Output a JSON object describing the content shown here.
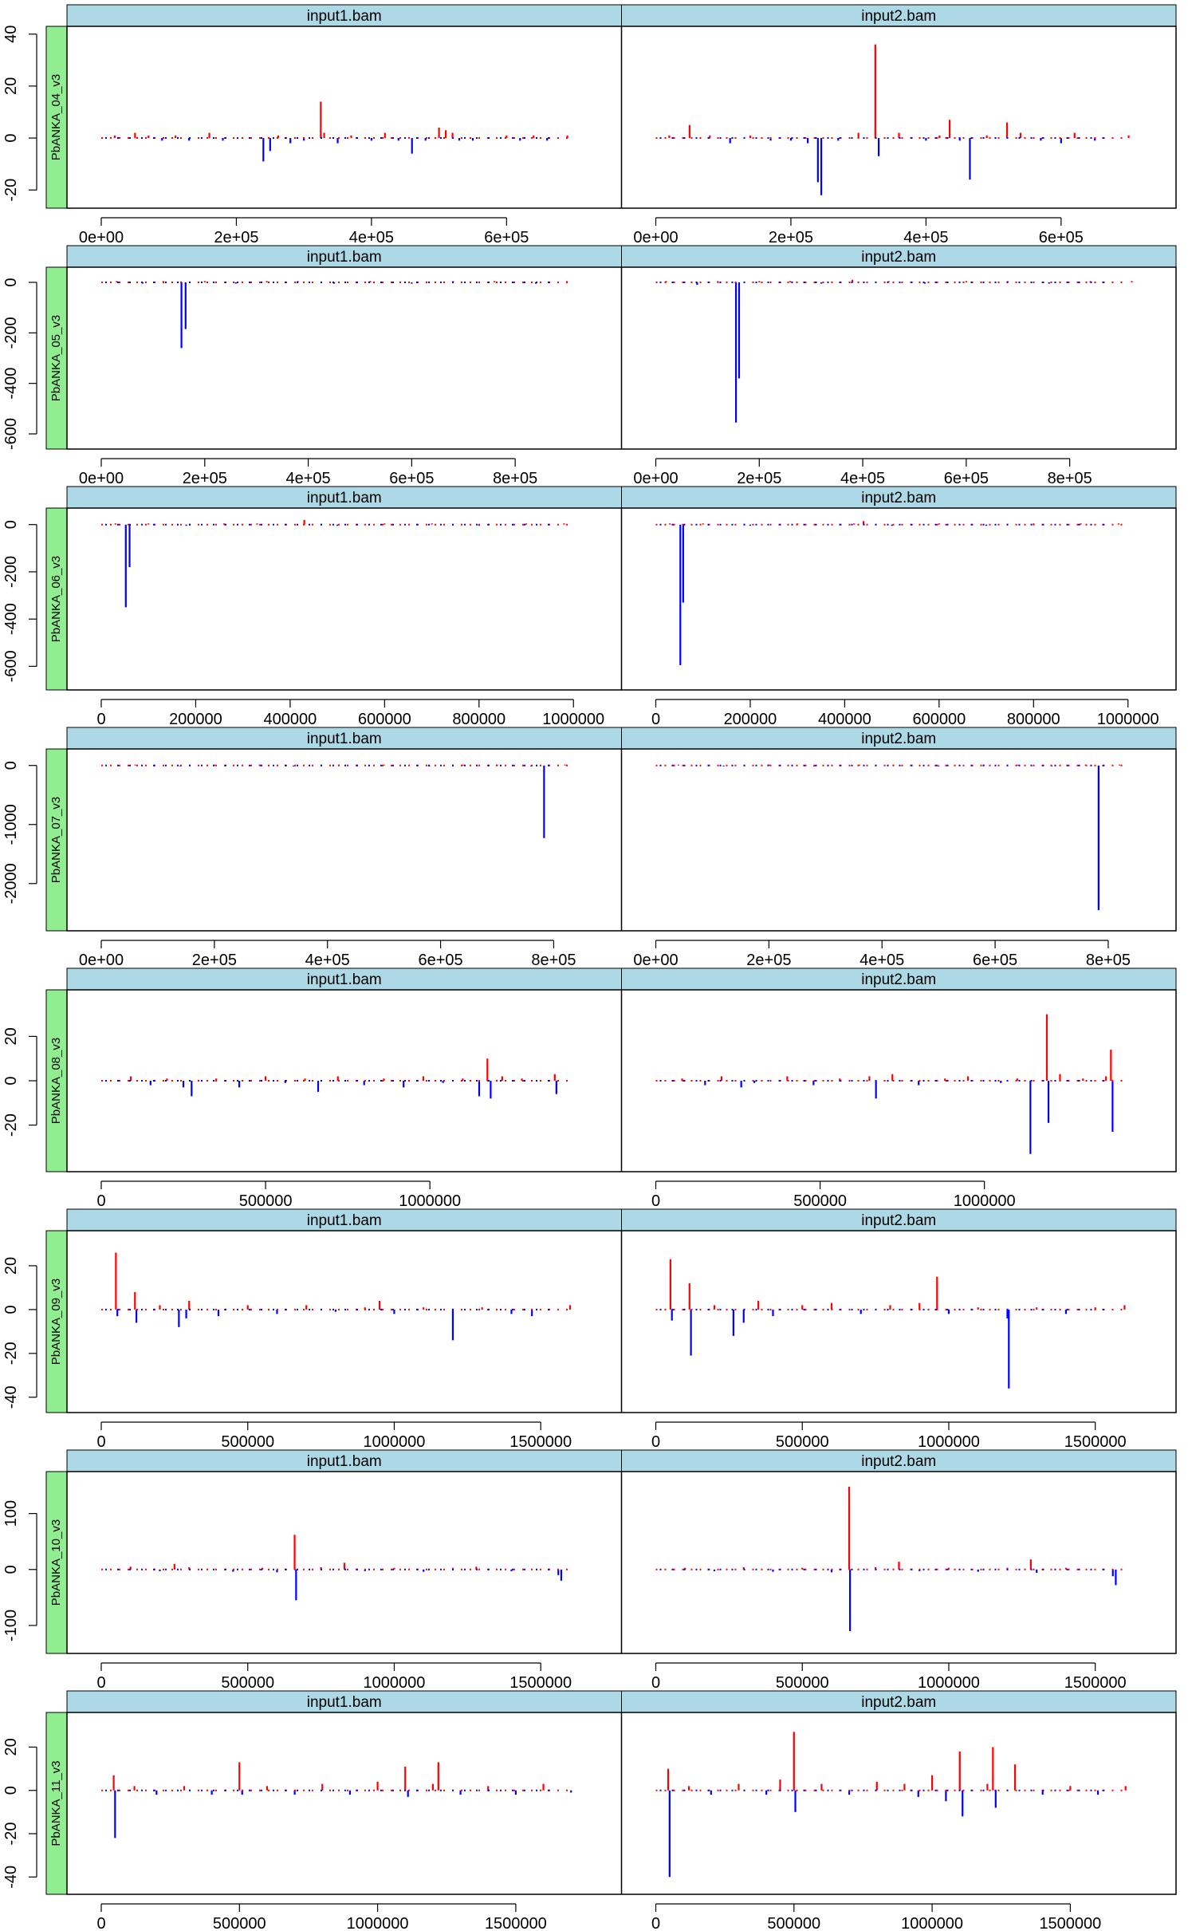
{
  "colors": {
    "positive": "#ff0000",
    "negative": "#0000ff",
    "strip_top": "#add8e6",
    "strip_side": "#90ee90",
    "frame": "#000000"
  },
  "panels": [
    "input1.bam",
    "input2.bam"
  ],
  "chart_data": [
    {
      "type": "bar",
      "row_label": "PbANKA_04_v3",
      "panel_labels": [
        "input1.bam",
        "input2.bam"
      ],
      "xlim": [
        0,
        720000
      ],
      "ylim": [
        -27,
        43
      ],
      "xticks": [
        0,
        200000,
        400000,
        600000
      ],
      "xtick_labels": [
        "0e+00",
        "2e+05",
        "4e+05",
        "6e+05"
      ],
      "yticks": [
        -20,
        0,
        20,
        40
      ],
      "ytick_labels": [
        "-20",
        "0",
        "20",
        "40"
      ],
      "series": [
        {
          "panel": "input1.bam",
          "x": [
            20000,
            50000,
            70000,
            90000,
            110000,
            130000,
            160000,
            180000,
            240000,
            250000,
            262000,
            280000,
            300000,
            325000,
            330000,
            350000,
            370000,
            400000,
            420000,
            440000,
            460000,
            480000,
            500000,
            510000,
            520000,
            530000,
            550000,
            600000,
            620000,
            640000,
            660000,
            690000
          ],
          "y": [
            1,
            2,
            1,
            -1,
            1,
            -1,
            2,
            -1,
            -9,
            -5,
            1,
            -2,
            -1,
            14,
            2,
            -2,
            1,
            -1,
            2,
            -1,
            -6,
            -1,
            4,
            3,
            2,
            -1,
            -1,
            1,
            -1,
            1,
            -1,
            1
          ]
        },
        {
          "panel": "input2.bam",
          "x": [
            20000,
            50000,
            80000,
            110000,
            140000,
            170000,
            200000,
            225000,
            240000,
            245000,
            270000,
            300000,
            325000,
            330000,
            360000,
            400000,
            420000,
            435000,
            450000,
            465000,
            490000,
            520000,
            540000,
            570000,
            600000,
            620000,
            650000,
            700000
          ],
          "y": [
            1,
            5,
            1,
            -2,
            1,
            -1,
            -1,
            -2,
            -17,
            -22,
            -1,
            2,
            36,
            -7,
            2,
            -1,
            1,
            7,
            -1,
            -16,
            1,
            6,
            2,
            -1,
            -2,
            2,
            -1,
            1
          ]
        }
      ]
    },
    {
      "type": "bar",
      "row_label": "PbANKA_05_v3",
      "panel_labels": [
        "input1.bam",
        "input2.bam"
      ],
      "xlim": [
        0,
        940000
      ],
      "ylim": [
        -660,
        60
      ],
      "xticks": [
        0,
        200000,
        400000,
        600000,
        800000
      ],
      "xtick_labels": [
        "0e+00",
        "2e+05",
        "4e+05",
        "6e+05",
        "8e+05"
      ],
      "yticks": [
        -600,
        -400,
        -200,
        0
      ],
      "ytick_labels": [
        "-600",
        "-400",
        "-200",
        "0"
      ],
      "series": [
        {
          "panel": "input1.bam",
          "x": [
            30000,
            80000,
            120000,
            155000,
            163000,
            200000,
            260000,
            320000,
            380000,
            450000,
            520000,
            600000,
            680000,
            760000,
            840000,
            900000
          ],
          "y": [
            5,
            -5,
            5,
            -260,
            -185,
            5,
            -5,
            5,
            5,
            -5,
            5,
            -5,
            5,
            5,
            -5,
            5
          ]
        },
        {
          "panel": "input2.bam",
          "x": [
            20000,
            80000,
            120000,
            155000,
            161000,
            200000,
            260000,
            320000,
            380000,
            450000,
            520000,
            600000,
            680000,
            760000,
            840000,
            920000
          ],
          "y": [
            5,
            -10,
            5,
            -555,
            -380,
            5,
            5,
            -5,
            10,
            5,
            -5,
            5,
            5,
            -5,
            5,
            5
          ]
        }
      ]
    },
    {
      "type": "bar",
      "row_label": "PbANKA_06_v3",
      "panel_labels": [
        "input1.bam",
        "input2.bam"
      ],
      "xlim": [
        0,
        1030000
      ],
      "ylim": [
        -700,
        70
      ],
      "xticks": [
        0,
        200000,
        400000,
        600000,
        800000,
        1000000
      ],
      "xtick_labels": [
        "0",
        "200000",
        "400000",
        "600000",
        "800000",
        "1000000"
      ],
      "yticks": [
        -600,
        -400,
        -200,
        0
      ],
      "ytick_labels": [
        "-600",
        "-400",
        "-200",
        "0"
      ],
      "series": [
        {
          "panel": "input1.bam",
          "x": [
            30000,
            52000,
            60000,
            100000,
            180000,
            260000,
            330000,
            430000,
            500000,
            600000,
            700000,
            800000,
            900000,
            980000
          ],
          "y": [
            5,
            -350,
            -180,
            5,
            -5,
            5,
            5,
            20,
            -5,
            5,
            5,
            -5,
            5,
            5
          ]
        },
        {
          "panel": "input2.bam",
          "x": [
            30000,
            52000,
            58000,
            100000,
            200000,
            300000,
            420000,
            440000,
            500000,
            600000,
            700000,
            800000,
            900000,
            980000
          ],
          "y": [
            5,
            -595,
            -330,
            5,
            -5,
            5,
            5,
            15,
            -5,
            5,
            -5,
            5,
            5,
            5
          ]
        }
      ]
    },
    {
      "type": "bar",
      "row_label": "PbANKA_07_v3",
      "panel_labels": [
        "input1.bam",
        "input2.bam"
      ],
      "xlim": [
        0,
        860000
      ],
      "ylim": [
        -2800,
        280
      ],
      "xticks": [
        0,
        200000,
        400000,
        600000,
        800000
      ],
      "xtick_labels": [
        "0e+00",
        "2e+05",
        "4e+05",
        "6e+05",
        "8e+05"
      ],
      "yticks": [
        -2000,
        -1000,
        0
      ],
      "ytick_labels": [
        "-2000",
        "-1000",
        "0"
      ],
      "series": [
        {
          "panel": "input1.bam",
          "x": [
            60000,
            140000,
            200000,
            280000,
            340000,
            420000,
            500000,
            580000,
            640000,
            700000,
            760000,
            783000,
            820000
          ],
          "y": [
            15,
            -15,
            15,
            15,
            -15,
            15,
            15,
            -15,
            15,
            15,
            -15,
            -1230,
            15
          ]
        },
        {
          "panel": "input2.bam",
          "x": [
            40000,
            120000,
            200000,
            280000,
            360000,
            420000,
            500000,
            580000,
            640000,
            700000,
            760000,
            783000,
            820000
          ],
          "y": [
            15,
            -15,
            15,
            -15,
            15,
            15,
            -15,
            15,
            15,
            -15,
            15,
            -2450,
            15
          ]
        }
      ]
    },
    {
      "type": "bar",
      "row_label": "PbANKA_08_v3",
      "panel_labels": [
        "input1.bam",
        "input2.bam"
      ],
      "xlim": [
        0,
        1480000
      ],
      "ylim": [
        -41,
        41
      ],
      "xticks": [
        0,
        500000,
        1000000
      ],
      "xtick_labels": [
        "0",
        "500000",
        "1000000"
      ],
      "yticks": [
        -20,
        0,
        20
      ],
      "ytick_labels": [
        "-20",
        "0",
        "20"
      ],
      "series": [
        {
          "panel": "input1.bam",
          "x": [
            90000,
            150000,
            200000,
            250000,
            275000,
            350000,
            420000,
            500000,
            560000,
            620000,
            660000,
            720000,
            800000,
            860000,
            920000,
            980000,
            1040000,
            1100000,
            1150000,
            1175000,
            1185000,
            1220000,
            1280000,
            1380000,
            1385000
          ],
          "y": [
            2,
            -2,
            1,
            -3,
            -7,
            1,
            -3,
            2,
            -1,
            1,
            -5,
            2,
            -2,
            1,
            -3,
            2,
            -1,
            1,
            -7,
            10,
            -8,
            2,
            1,
            3,
            -6
          ]
        },
        {
          "panel": "input2.bam",
          "x": [
            80000,
            150000,
            200000,
            260000,
            300000,
            400000,
            480000,
            560000,
            650000,
            670000,
            720000,
            800000,
            880000,
            950000,
            1050000,
            1100000,
            1140000,
            1190000,
            1195000,
            1230000,
            1300000,
            1370000,
            1385000,
            1390000
          ],
          "y": [
            1,
            -2,
            2,
            -3,
            -1,
            2,
            -2,
            1,
            2,
            -8,
            3,
            -2,
            1,
            2,
            -1,
            1,
            -33,
            30,
            -19,
            3,
            1,
            2,
            14,
            -23
          ]
        }
      ]
    },
    {
      "type": "bar",
      "row_label": "PbANKA_09_v3",
      "panel_labels": [
        "input1.bam",
        "input2.bam"
      ],
      "xlim": [
        0,
        1660000
      ],
      "ylim": [
        -47,
        36
      ],
      "xticks": [
        0,
        500000,
        1000000,
        1500000
      ],
      "xtick_labels": [
        "0",
        "500000",
        "1000000",
        "1500000"
      ],
      "yticks": [
        -40,
        -20,
        0,
        20
      ],
      "ytick_labels": [
        "-40",
        "-20",
        "0",
        "20"
      ],
      "series": [
        {
          "panel": "input1.bam",
          "x": [
            50000,
            55000,
            115000,
            120000,
            200000,
            265000,
            290000,
            300000,
            400000,
            500000,
            600000,
            700000,
            800000,
            900000,
            950000,
            1000000,
            1100000,
            1200000,
            1300000,
            1400000,
            1470000,
            1600000
          ],
          "y": [
            26,
            -3,
            8,
            -6,
            2,
            -8,
            -4,
            4,
            -3,
            2,
            -2,
            2,
            -1,
            1,
            4,
            -2,
            1,
            -14,
            1,
            -2,
            -3,
            2
          ]
        },
        {
          "panel": "input2.bam",
          "x": [
            50000,
            55000,
            115000,
            120000,
            200000,
            265000,
            300000,
            350000,
            400000,
            500000,
            600000,
            700000,
            800000,
            900000,
            960000,
            1000000,
            1100000,
            1200000,
            1205000,
            1300000,
            1400000,
            1500000,
            1600000
          ],
          "y": [
            23,
            -5,
            12,
            -21,
            2,
            -12,
            -6,
            4,
            -3,
            2,
            3,
            -2,
            2,
            3,
            15,
            -2,
            1,
            -4,
            -36,
            1,
            -2,
            1,
            2
          ]
        }
      ]
    },
    {
      "type": "bar",
      "row_label": "PbANKA_10_v3",
      "panel_labels": [
        "input1.bam",
        "input2.bam"
      ],
      "xlim": [
        0,
        1660000
      ],
      "ylim": [
        -150,
        175
      ],
      "xticks": [
        0,
        500000,
        1000000,
        1500000
      ],
      "xtick_labels": [
        "0",
        "500000",
        "1000000",
        "1500000"
      ],
      "yticks": [
        -100,
        0,
        100
      ],
      "ytick_labels": [
        "-100",
        "0",
        "100"
      ],
      "series": [
        {
          "panel": "input1.bam",
          "x": [
            100000,
            200000,
            250000,
            300000,
            450000,
            550000,
            600000,
            660000,
            665000,
            750000,
            830000,
            900000,
            1000000,
            1100000,
            1200000,
            1280000,
            1400000,
            1560000,
            1570000
          ],
          "y": [
            5,
            -3,
            10,
            4,
            -4,
            3,
            -5,
            62,
            -55,
            4,
            12,
            -3,
            3,
            -4,
            3,
            5,
            -3,
            -10,
            -20
          ]
        },
        {
          "panel": "input2.bam",
          "x": [
            100000,
            200000,
            300000,
            400000,
            500000,
            600000,
            660000,
            663000,
            750000,
            830000,
            900000,
            1000000,
            1100000,
            1200000,
            1280000,
            1300000,
            1400000,
            1560000,
            1570000
          ],
          "y": [
            3,
            -3,
            4,
            -4,
            3,
            -5,
            148,
            -110,
            4,
            14,
            -3,
            3,
            -4,
            3,
            18,
            -6,
            3,
            -12,
            -28
          ]
        }
      ]
    },
    {
      "type": "bar",
      "row_label": "PbANKA_11_v3",
      "panel_labels": [
        "input1.bam",
        "input2.bam"
      ],
      "xlim": [
        0,
        1760000
      ],
      "ylim": [
        -48,
        36
      ],
      "xticks": [
        0,
        500000,
        1000000,
        1500000
      ],
      "xtick_labels": [
        "0",
        "500000",
        "1000000",
        "1500000"
      ],
      "yticks": [
        -40,
        -20,
        0,
        20
      ],
      "ytick_labels": [
        "-40",
        "-20",
        "0",
        "20"
      ],
      "series": [
        {
          "panel": "input1.bam",
          "x": [
            45000,
            50000,
            120000,
            200000,
            300000,
            400000,
            500000,
            510000,
            600000,
            700000,
            800000,
            900000,
            1000000,
            1100000,
            1110000,
            1200000,
            1220000,
            1300000,
            1400000,
            1500000,
            1600000,
            1700000
          ],
          "y": [
            7,
            -22,
            2,
            -2,
            2,
            -2,
            13,
            -2,
            2,
            -2,
            3,
            -2,
            4,
            11,
            -3,
            3,
            13,
            -2,
            2,
            -2,
            3,
            -1
          ]
        },
        {
          "panel": "input2.bam",
          "x": [
            45000,
            50000,
            120000,
            200000,
            300000,
            400000,
            450000,
            500000,
            505000,
            600000,
            700000,
            800000,
            900000,
            950000,
            1000000,
            1050000,
            1100000,
            1110000,
            1200000,
            1220000,
            1230000,
            1300000,
            1400000,
            1500000,
            1600000,
            1700000
          ],
          "y": [
            10,
            -40,
            2,
            -2,
            3,
            -2,
            5,
            27,
            -10,
            3,
            -2,
            4,
            3,
            -3,
            7,
            -5,
            18,
            -12,
            3,
            20,
            -8,
            12,
            -2,
            2,
            -2,
            2
          ]
        }
      ]
    }
  ]
}
